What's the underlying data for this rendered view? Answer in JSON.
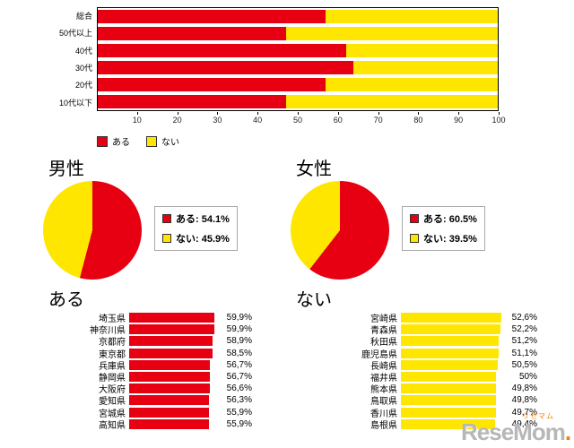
{
  "colors": {
    "have": "#e60012",
    "not_have": "#ffe600"
  },
  "watermark": {
    "brand": "ReseMom",
    "kana": "リセマム",
    "dot": "."
  },
  "chart_data": [
    {
      "name": "age-stacked-bar",
      "type": "bar",
      "stacked": true,
      "orientation": "horizontal",
      "categories": [
        "総合",
        "50代以上",
        "40代",
        "30代",
        "20代",
        "10代以下"
      ],
      "series": [
        {
          "name": "ある",
          "color": "#e60012",
          "values": [
            57,
            47,
            62,
            64,
            57,
            47
          ]
        },
        {
          "name": "ない",
          "color": "#ffe600",
          "values": [
            43,
            53,
            38,
            36,
            43,
            53
          ]
        }
      ],
      "xlim": [
        0,
        100
      ],
      "xticks": [
        10,
        20,
        30,
        40,
        50,
        60,
        70,
        80,
        90,
        100
      ],
      "legend_position": "bottom-left"
    },
    {
      "name": "male-pie",
      "type": "pie",
      "title": "男性",
      "slices": [
        {
          "label": "ある",
          "value": 54.1,
          "display": "ある: 54.1%",
          "color": "#e60012"
        },
        {
          "label": "ない",
          "value": 45.9,
          "display": "ない: 45.9%",
          "color": "#ffe600"
        }
      ]
    },
    {
      "name": "female-pie",
      "type": "pie",
      "title": "女性",
      "slices": [
        {
          "label": "ある",
          "value": 60.5,
          "display": "ある: 60.5%",
          "color": "#e60012"
        },
        {
          "label": "ない",
          "value": 39.5,
          "display": "ない: 39.5%",
          "color": "#ffe600"
        }
      ]
    },
    {
      "name": "have-by-pref",
      "type": "bar",
      "title": "ある",
      "color": "#e60012",
      "categories": [
        "埼玉県",
        "神奈川県",
        "京都府",
        "東京都",
        "兵庫県",
        "静岡県",
        "大阪府",
        "愛知県",
        "宮城県",
        "高知県"
      ],
      "values": [
        59.9,
        59.9,
        58.9,
        58.5,
        56.7,
        56.7,
        56.6,
        56.3,
        55.9,
        55.9
      ],
      "value_labels": [
        "59,9%",
        "59,9%",
        "58,9%",
        "58,5%",
        "56,7%",
        "56,7%",
        "56,6%",
        "56,3%",
        "55,9%",
        "55,9%"
      ]
    },
    {
      "name": "nothave-by-pref",
      "type": "bar",
      "title": "ない",
      "color": "#ffe600",
      "categories": [
        "宮崎県",
        "青森県",
        "秋田県",
        "鹿児島県",
        "長崎県",
        "福井県",
        "熊本県",
        "鳥取県",
        "香川県",
        "島根県"
      ],
      "values": [
        52.6,
        52.2,
        51.2,
        51.1,
        50.5,
        50,
        49.8,
        49.8,
        49.7,
        49.4
      ],
      "value_labels": [
        "52,6%",
        "52,2%",
        "51,2%",
        "51,1%",
        "50,5%",
        "50%",
        "49,8%",
        "49,8%",
        "49,7%",
        "49,4%"
      ]
    }
  ]
}
